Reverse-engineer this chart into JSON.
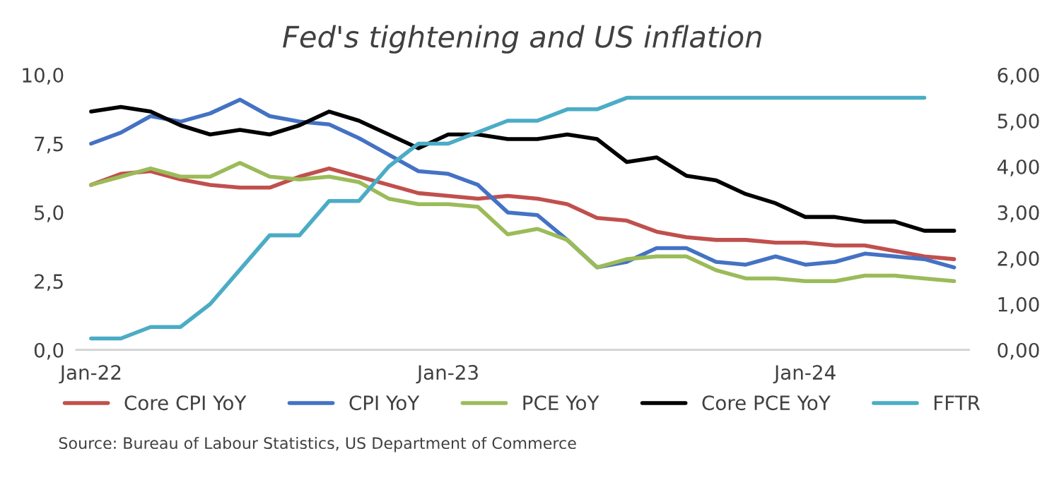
{
  "chart_data": {
    "type": "line",
    "title": "Fed's tightening and US inflation",
    "categories": [
      "Jan-22",
      null,
      null,
      null,
      null,
      null,
      null,
      null,
      null,
      null,
      null,
      null,
      "Jan-23",
      null,
      null,
      null,
      null,
      null,
      null,
      null,
      null,
      null,
      null,
      null,
      "Jan-24",
      null,
      null,
      null,
      null,
      null
    ],
    "series": [
      {
        "name": "Core CPI YoY",
        "color": "#c0504d",
        "values": [
          6.0,
          6.4,
          6.5,
          6.2,
          6.0,
          5.9,
          5.9,
          6.3,
          6.6,
          6.3,
          6.0,
          5.7,
          5.6,
          5.5,
          5.6,
          5.5,
          5.3,
          4.8,
          4.7,
          4.3,
          4.1,
          4.0,
          4.0,
          3.9,
          3.9,
          3.8,
          3.8,
          3.6,
          3.4,
          3.3
        ]
      },
      {
        "name": "CPI YoY",
        "color": "#4472c4",
        "values": [
          7.5,
          7.9,
          8.5,
          8.3,
          8.6,
          9.1,
          8.5,
          8.3,
          8.2,
          7.7,
          7.1,
          6.5,
          6.4,
          6.0,
          5.0,
          4.9,
          4.0,
          3.0,
          3.2,
          3.7,
          3.7,
          3.2,
          3.1,
          3.4,
          3.1,
          3.2,
          3.5,
          3.4,
          3.3,
          3.0
        ]
      },
      {
        "name": "PCE YoY",
        "color": "#9bbb59",
        "values": [
          6.0,
          6.3,
          6.6,
          6.3,
          6.3,
          6.8,
          6.3,
          6.2,
          6.3,
          6.1,
          5.5,
          5.3,
          5.3,
          5.2,
          4.2,
          4.4,
          4.0,
          3.0,
          3.3,
          3.4,
          3.4,
          2.9,
          2.6,
          2.6,
          2.5,
          2.5,
          2.7,
          2.7,
          2.6,
          2.5
        ]
      },
      {
        "name": "Core PCE YoY",
        "color": "#000000",
        "axis": "y2",
        "values": [
          5.2,
          5.3,
          5.2,
          4.9,
          4.7,
          4.8,
          4.7,
          4.9,
          5.2,
          5.0,
          4.7,
          4.4,
          4.7,
          4.7,
          4.6,
          4.6,
          4.7,
          4.6,
          4.1,
          4.2,
          3.8,
          3.7,
          3.4,
          3.2,
          2.9,
          2.9,
          2.8,
          2.8,
          2.6,
          2.6
        ]
      },
      {
        "name": "FFTR",
        "color": "#4bacc6",
        "axis": "y2",
        "values": [
          0.25,
          0.25,
          0.5,
          0.5,
          1.0,
          1.75,
          2.5,
          2.5,
          3.25,
          3.25,
          4.0,
          4.5,
          4.5,
          4.75,
          5.0,
          5.0,
          5.25,
          5.25,
          5.5,
          5.5,
          5.5,
          5.5,
          5.5,
          5.5,
          5.5,
          5.5,
          5.5,
          5.5,
          5.5,
          null
        ]
      }
    ],
    "ylim": [
      0,
      10
    ],
    "yticks": [
      {
        "value": 0,
        "label": "0,0"
      },
      {
        "value": 2.5,
        "label": "2,5"
      },
      {
        "value": 5,
        "label": "5,0"
      },
      {
        "value": 7.5,
        "label": "7,5"
      },
      {
        "value": 10,
        "label": "10,0"
      }
    ],
    "y2lim": [
      0,
      6
    ],
    "y2ticks": [
      {
        "value": 0,
        "label": "0,00"
      },
      {
        "value": 1,
        "label": "1,00"
      },
      {
        "value": 2,
        "label": "2,00"
      },
      {
        "value": 3,
        "label": "3,00"
      },
      {
        "value": 4,
        "label": "4,00"
      },
      {
        "value": 5,
        "label": "5,00"
      },
      {
        "value": 6,
        "label": "6,00"
      }
    ],
    "legend": "bottom",
    "grid": false,
    "annotations": [
      "Source: Bureau of Labour Statistics, US Department of Commerce"
    ]
  }
}
